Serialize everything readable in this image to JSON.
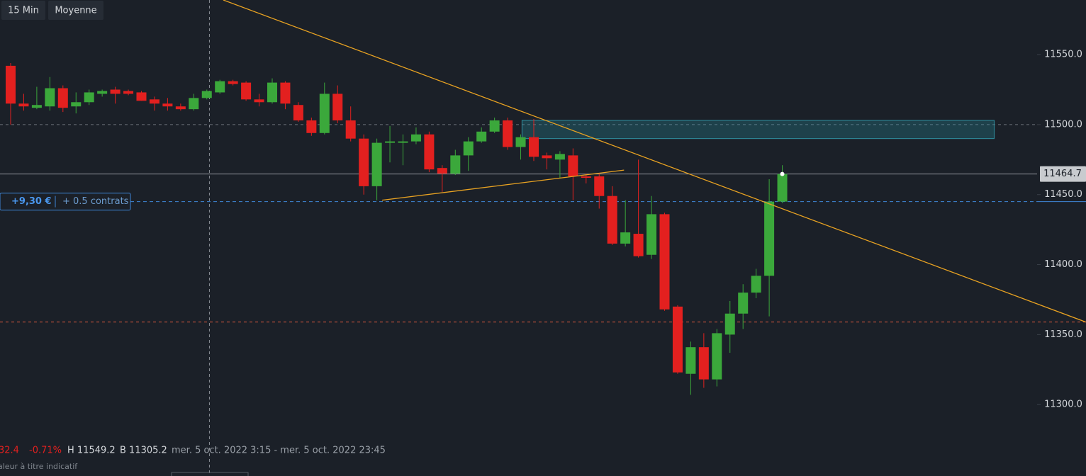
{
  "toolbar": {
    "interval": "15 Min",
    "chart_style": "Moyenne"
  },
  "chart_data": {
    "type": "candlestick",
    "ylim": [
      11249,
      11589
    ],
    "yticks": [
      {
        "value": 11550,
        "label": "11550.0"
      },
      {
        "value": 11500,
        "label": "11500.0"
      },
      {
        "value": 11450,
        "label": "11450.0"
      },
      {
        "value": 11400,
        "label": "11400.0"
      },
      {
        "value": 11350,
        "label": "11350.0"
      },
      {
        "value": 11300,
        "label": "11300.0"
      }
    ],
    "up_color": "#3ba83b",
    "down_color": "#e3201f",
    "open": [
      11542,
      11515,
      11512,
      11513,
      11526,
      11513,
      11516,
      11522,
      11525,
      11524,
      11523,
      11518,
      11515,
      11513,
      11511,
      11519,
      11523,
      11531,
      11530,
      11518,
      11516,
      11530,
      11514,
      11503,
      11494,
      11522,
      11503,
      11490,
      11456,
      11487,
      11487,
      11488,
      11493,
      11469,
      11465,
      11478,
      11488,
      11495,
      11503,
      11484,
      11491,
      11478,
      11475,
      11478,
      11463,
      11463,
      11449,
      11415,
      11422,
      11407,
      11436,
      11370,
      11322,
      11341,
      11318,
      11350,
      11365,
      11380,
      11392,
      11445
    ],
    "high": [
      11544,
      11522,
      11527,
      11534,
      11528,
      11523,
      11525,
      11525,
      11527,
      11525,
      11524,
      11520,
      11519,
      11515,
      11522,
      11525,
      11532,
      11532,
      11531,
      11522,
      11533,
      11531,
      11516,
      11505,
      11530,
      11528,
      11513,
      11493,
      11490,
      11499,
      11493,
      11498,
      11495,
      11471,
      11482,
      11491,
      11498,
      11505,
      11505,
      11493,
      11504,
      11480,
      11481,
      11483,
      11465,
      11465,
      11456,
      11446,
      11475,
      11449,
      11437,
      11371,
      11345,
      11351,
      11354,
      11374,
      11386,
      11397,
      11461,
      11471
    ],
    "low": [
      11500,
      11510,
      11511,
      11510,
      11509,
      11508,
      11514,
      11520,
      11515,
      11521,
      11517,
      11510,
      11510,
      11510,
      11510,
      11518,
      11522,
      11528,
      11517,
      11513,
      11515,
      11511,
      11502,
      11492,
      11493,
      11501,
      11488,
      11450,
      11446,
      11473,
      11471,
      11486,
      11466,
      11452,
      11464,
      11467,
      11487,
      11494,
      11482,
      11475,
      11474,
      11468,
      11462,
      11446,
      11458,
      11440,
      11414,
      11413,
      11405,
      11404,
      11367,
      11322,
      11307,
      11312,
      11313,
      11337,
      11354,
      11376,
      11363,
      11444
    ],
    "close": [
      11515,
      11513,
      11514,
      11526,
      11512,
      11516,
      11523,
      11524,
      11522,
      11522,
      11517,
      11515,
      11513,
      11511,
      11519,
      11524,
      11531,
      11529,
      11518,
      11516,
      11530,
      11515,
      11503,
      11494,
      11522,
      11503,
      11490,
      11456,
      11487,
      11488,
      11488,
      11493,
      11468,
      11465,
      11478,
      11488,
      11495,
      11503,
      11484,
      11491,
      11477,
      11476,
      11479,
      11463,
      11462,
      11449,
      11415,
      11423,
      11406,
      11436,
      11368,
      11323,
      11341,
      11318,
      11351,
      11365,
      11380,
      11392,
      11445,
      11464.7
    ],
    "last_price": 11464.7,
    "support_level": 11359,
    "reference_level": 11500,
    "zone": {
      "start_index": 39.1,
      "end_index": 75.2,
      "top": 11503,
      "bottom": 11490
    },
    "trendlines": [
      {
        "start_index": 16.26,
        "start_price": 11589,
        "end_index": 82.2,
        "end_price": 11359
      },
      {
        "start_index": 28.4,
        "start_price": 11446,
        "end_index": 46.9,
        "end_price": 11467.5
      }
    ],
    "crosshair_index": 15.2,
    "position": {
      "price": 11445,
      "pnl": "+9,30 €",
      "size": "+ 0.5 contrats"
    }
  },
  "footer": {
    "change": "32.4",
    "change_pct": "-0.71%",
    "high": "H 11549.2",
    "low": "B 11305.2",
    "range": "mer. 5 oct. 2022 3:15 - mer. 5 oct. 2022 23:45",
    "disclaimer": "aleur à titre indicatif"
  }
}
